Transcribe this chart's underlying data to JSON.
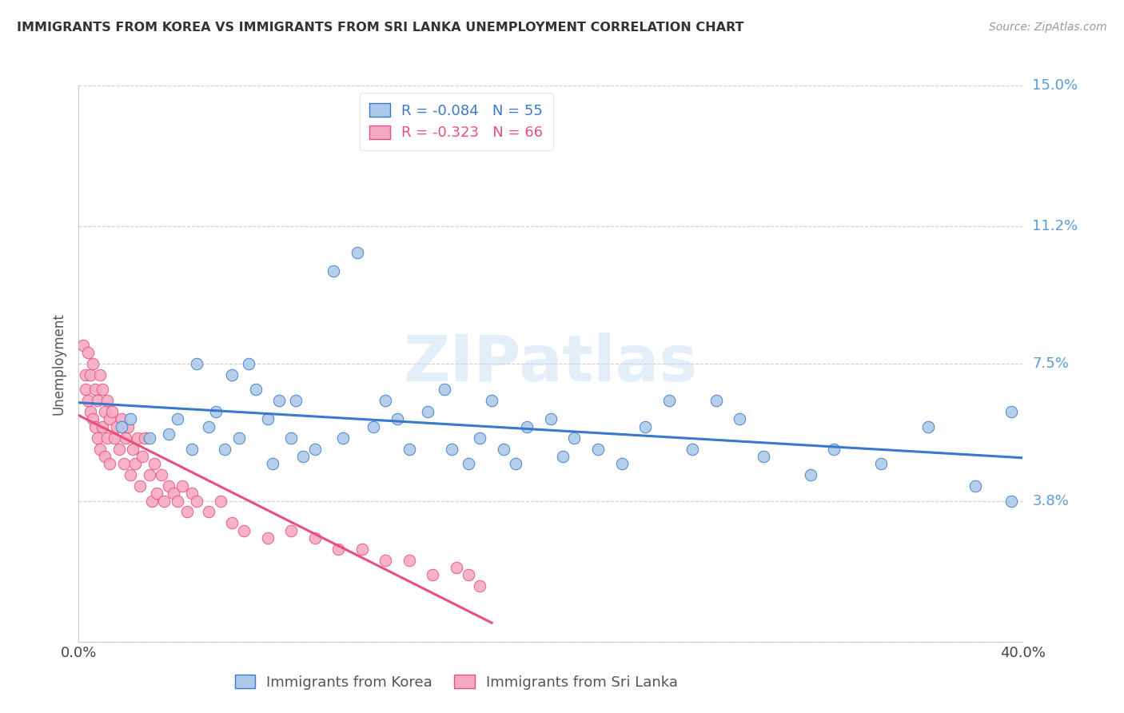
{
  "title": "IMMIGRANTS FROM KOREA VS IMMIGRANTS FROM SRI LANKA UNEMPLOYMENT CORRELATION CHART",
  "source": "Source: ZipAtlas.com",
  "ylabel": "Unemployment",
  "xlim": [
    0.0,
    0.4
  ],
  "ylim": [
    0.0,
    0.15
  ],
  "yticks": [
    0.0,
    0.038,
    0.075,
    0.112,
    0.15
  ],
  "ytick_labels": [
    "",
    "3.8%",
    "7.5%",
    "11.2%",
    "15.0%"
  ],
  "xticks": [
    0.0,
    0.1,
    0.2,
    0.3,
    0.4
  ],
  "xtick_labels": [
    "0.0%",
    "",
    "",
    "",
    "40.0%"
  ],
  "korea_R": "-0.084",
  "korea_N": "55",
  "srilanka_R": "-0.323",
  "srilanka_N": "66",
  "korea_color": "#adc9e8",
  "srilanka_color": "#f5aac4",
  "korea_line_color": "#3a78c9",
  "srilanka_line_color": "#e8507a",
  "watermark": "ZIPatlas",
  "korea_points_x": [
    0.018,
    0.022,
    0.03,
    0.038,
    0.042,
    0.048,
    0.05,
    0.055,
    0.058,
    0.062,
    0.065,
    0.068,
    0.072,
    0.075,
    0.08,
    0.082,
    0.085,
    0.09,
    0.092,
    0.095,
    0.1,
    0.108,
    0.112,
    0.118,
    0.125,
    0.13,
    0.135,
    0.14,
    0.148,
    0.155,
    0.158,
    0.165,
    0.17,
    0.175,
    0.18,
    0.185,
    0.19,
    0.2,
    0.205,
    0.21,
    0.22,
    0.23,
    0.24,
    0.25,
    0.26,
    0.27,
    0.28,
    0.29,
    0.31,
    0.32,
    0.34,
    0.36,
    0.38,
    0.395,
    0.395
  ],
  "korea_points_y": [
    0.058,
    0.06,
    0.055,
    0.056,
    0.06,
    0.052,
    0.075,
    0.058,
    0.062,
    0.052,
    0.072,
    0.055,
    0.075,
    0.068,
    0.06,
    0.048,
    0.065,
    0.055,
    0.065,
    0.05,
    0.052,
    0.1,
    0.055,
    0.105,
    0.058,
    0.065,
    0.06,
    0.052,
    0.062,
    0.068,
    0.052,
    0.048,
    0.055,
    0.065,
    0.052,
    0.048,
    0.058,
    0.06,
    0.05,
    0.055,
    0.052,
    0.048,
    0.058,
    0.065,
    0.052,
    0.065,
    0.06,
    0.05,
    0.045,
    0.052,
    0.048,
    0.058,
    0.042,
    0.038,
    0.062
  ],
  "srilanka_points_x": [
    0.002,
    0.003,
    0.003,
    0.004,
    0.004,
    0.005,
    0.005,
    0.006,
    0.006,
    0.007,
    0.007,
    0.008,
    0.008,
    0.009,
    0.009,
    0.01,
    0.01,
    0.011,
    0.011,
    0.012,
    0.012,
    0.013,
    0.013,
    0.014,
    0.015,
    0.016,
    0.017,
    0.018,
    0.019,
    0.02,
    0.021,
    0.022,
    0.023,
    0.024,
    0.025,
    0.026,
    0.027,
    0.028,
    0.03,
    0.031,
    0.032,
    0.033,
    0.035,
    0.036,
    0.038,
    0.04,
    0.042,
    0.044,
    0.046,
    0.048,
    0.05,
    0.055,
    0.06,
    0.065,
    0.07,
    0.08,
    0.09,
    0.1,
    0.11,
    0.12,
    0.13,
    0.14,
    0.15,
    0.16,
    0.165,
    0.17
  ],
  "srilanka_points_y": [
    0.08,
    0.072,
    0.068,
    0.078,
    0.065,
    0.072,
    0.062,
    0.075,
    0.06,
    0.068,
    0.058,
    0.065,
    0.055,
    0.072,
    0.052,
    0.068,
    0.058,
    0.062,
    0.05,
    0.065,
    0.055,
    0.06,
    0.048,
    0.062,
    0.055,
    0.058,
    0.052,
    0.06,
    0.048,
    0.055,
    0.058,
    0.045,
    0.052,
    0.048,
    0.055,
    0.042,
    0.05,
    0.055,
    0.045,
    0.038,
    0.048,
    0.04,
    0.045,
    0.038,
    0.042,
    0.04,
    0.038,
    0.042,
    0.035,
    0.04,
    0.038,
    0.035,
    0.038,
    0.032,
    0.03,
    0.028,
    0.03,
    0.028,
    0.025,
    0.025,
    0.022,
    0.022,
    0.018,
    0.02,
    0.018,
    0.015
  ]
}
